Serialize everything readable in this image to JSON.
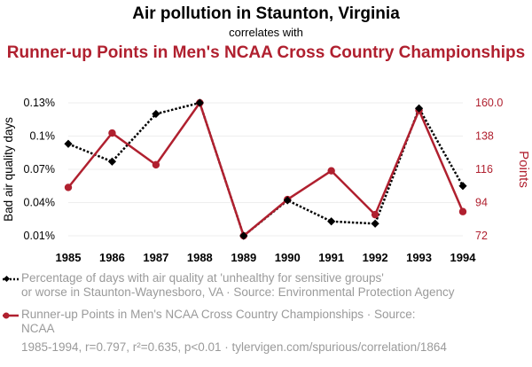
{
  "header": {
    "title": "Air pollution in Staunton, Virginia",
    "subtitle": "correlates with",
    "title2": "Runner-up Points in Men's NCAA Cross Country Championships"
  },
  "chart_data": {
    "type": "line",
    "title": "Air pollution in Staunton, Virginia correlates with Runner-up Points in Men's NCAA Cross Country Championships",
    "x": [
      "1985",
      "1986",
      "1987",
      "1988",
      "1989",
      "1990",
      "1991",
      "1992",
      "1993",
      "1994"
    ],
    "series": [
      {
        "name": "Percentage of days with air quality at 'unhealthy for sensitive groups' or worse in Staunton-Waynesboro, VA",
        "axis": "left",
        "color": "#000000",
        "style": "dotted",
        "marker": "diamond",
        "values": [
          0.00093,
          0.00077,
          0.0012,
          0.0013,
          0.0001,
          0.00042,
          0.00023,
          0.00021,
          0.00125,
          0.00055
        ]
      },
      {
        "name": "Runner-up Points in Men's NCAA Cross Country Championships",
        "axis": "right",
        "color": "#b0202f",
        "style": "solid",
        "marker": "circle",
        "values": [
          104,
          140,
          119,
          160,
          72,
          96,
          115,
          86,
          155,
          88
        ]
      }
    ],
    "y_left": {
      "label": "Bad air quality days",
      "range": [
        0.0001,
        0.0013
      ],
      "ticks": [
        0.0001,
        0.0004,
        0.0007,
        0.001,
        0.0013
      ],
      "tick_labels": [
        "0.01%",
        "0.04%",
        "0.07%",
        "0.1%",
        "0.13%"
      ]
    },
    "y_right": {
      "label": "Points",
      "range": [
        72,
        160
      ],
      "ticks": [
        72,
        94,
        116,
        138,
        160
      ],
      "tick_labels": [
        "72",
        "94",
        "116",
        "138",
        "160.0"
      ]
    },
    "grid": true
  },
  "legend": {
    "series1": "Percentage of days with air quality at 'unhealthy for sensitive groups'\nor worse in Staunton-Waynesboro, VA · Source: Environmental Protection Agency",
    "series2": "Runner-up Points in Men's NCAA Cross Country Championships · Source:\nNCAA"
  },
  "footer": "1985-1994, r=0.797, r²=0.635, p<0.01 · tylervigen.com/spurious/correlation/1864",
  "colors": {
    "series1": "#000000",
    "series2": "#b0202f",
    "grid": "#eeeeee",
    "muted": "#9a9a9a"
  }
}
